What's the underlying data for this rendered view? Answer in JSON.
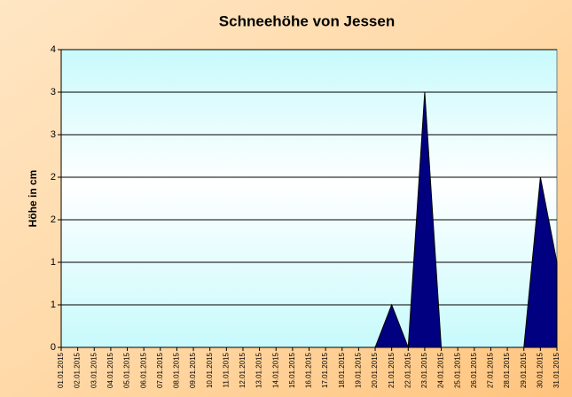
{
  "chart_data": {
    "type": "area",
    "title": "Schneehöhe von Jessen",
    "y_label": "Höhe in cm",
    "categories": [
      "01.01.2015",
      "02.01.2015",
      "03.01.2015",
      "04.01.2015",
      "05.01.2015",
      "06.01.2015",
      "07.01.2015",
      "08.01.2015",
      "09.01.2015",
      "10.01.2015",
      "11.01.2015",
      "12.01.2015",
      "13.01.2015",
      "14.01.2015",
      "15.01.2015",
      "16.01.2015",
      "17.01.2015",
      "18.01.2015",
      "19.01.2015",
      "20.01.2015",
      "21.01.2015",
      "22.01.2015",
      "23.01.2015",
      "24.01.2015",
      "25.01.2015",
      "26.01.2015",
      "27.01.2015",
      "28.01.2015",
      "29.01.2015",
      "30.01.2015",
      "31.01.2015"
    ],
    "values": [
      0,
      0,
      0,
      0,
      0,
      0,
      0,
      0,
      0,
      0,
      0,
      0,
      0,
      0,
      0,
      0,
      0,
      0,
      0,
      0,
      0.5,
      0,
      3,
      0,
      0,
      0,
      0,
      0,
      0,
      2,
      1
    ],
    "color": "#000080",
    "ylim": [
      0,
      3.5
    ],
    "yticks": [
      0,
      {
        "value": 0.5,
        "label": "1"
      },
      1,
      {
        "value": 1.5,
        "label": "2"
      },
      2,
      {
        "value": 2.5,
        "label": "3"
      },
      3,
      {
        "value": 3.5,
        "label": "4"
      }
    ],
    "grid": true
  }
}
